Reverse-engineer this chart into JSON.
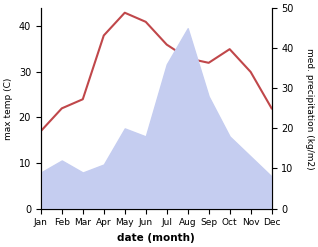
{
  "months": [
    "Jan",
    "Feb",
    "Mar",
    "Apr",
    "May",
    "Jun",
    "Jul",
    "Aug",
    "Sep",
    "Oct",
    "Nov",
    "Dec"
  ],
  "month_indices": [
    0,
    1,
    2,
    3,
    4,
    5,
    6,
    7,
    8,
    9,
    10,
    11
  ],
  "temperature": [
    17,
    22,
    24,
    38,
    43,
    41,
    36,
    33,
    32,
    35,
    30,
    22
  ],
  "precipitation": [
    9,
    12,
    9,
    11,
    20,
    18,
    36,
    45,
    28,
    18,
    13,
    8
  ],
  "temp_color": "#c0474a",
  "precip_fill_color": "#c5cdf0",
  "temp_ylim": [
    0,
    44
  ],
  "precip_ylim": [
    0,
    50
  ],
  "temp_yticks": [
    0,
    10,
    20,
    30,
    40
  ],
  "precip_yticks": [
    0,
    10,
    20,
    30,
    40,
    50
  ],
  "xlabel": "date (month)",
  "ylabel_left": "max temp (C)",
  "ylabel_right": "med. precipitation (kg/m2)",
  "figsize": [
    3.18,
    2.47
  ],
  "dpi": 100
}
